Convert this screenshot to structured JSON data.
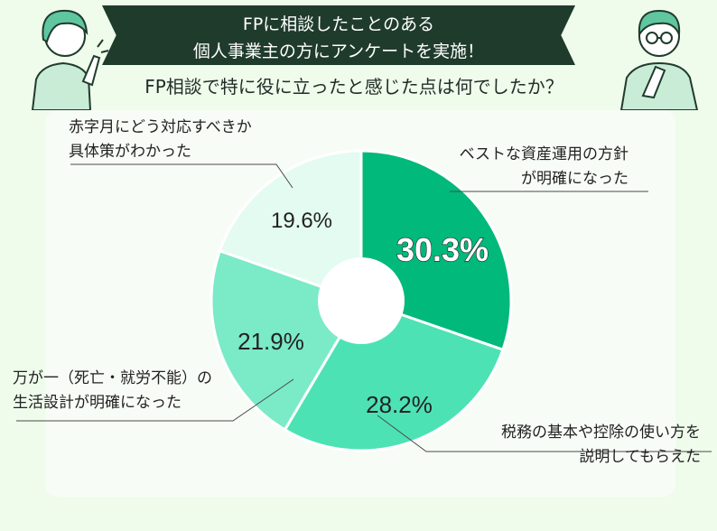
{
  "header": {
    "title_line1": "FPに相談したことのある",
    "title_line2": "個人事業主の方にアンケートを実施！",
    "question": "FP相談で特に役に立ったと感じた点は何でしたか？"
  },
  "chart_data": {
    "type": "pie",
    "title": "",
    "slices": [
      {
        "label": "ベストな資産運用の方針が明確になった",
        "value": 30.3,
        "value_label": "30.3%",
        "color": "#00b97a"
      },
      {
        "label": "税務の基本や控除の使い方を説明してもらえた",
        "value": 28.2,
        "value_label": "28.2%",
        "color": "#4de2b4"
      },
      {
        "label": "万が一（死亡・就労不能）の生活設計が明確になった",
        "value": 21.9,
        "value_label": "21.9%",
        "color": "#7aeac7"
      },
      {
        "label": "赤字月にどう対応すべきか具体策がわかった",
        "value": 19.6,
        "value_label": "19.6%",
        "color": "#e3fbf1"
      }
    ],
    "start_angle_deg": 0,
    "direction": "clockwise",
    "donut": true
  },
  "labels": {
    "s1_line1": "ベストな資産運用の方針",
    "s1_line2": "が明確になった",
    "s2_line1": "税務の基本や控除の使い方を",
    "s2_line2": "説明してもらえた",
    "s3_line1": "万が一（死亡・就労不能）の",
    "s3_line2": "生活設計が明確になった",
    "s4_line1": "赤字月にどう対応すべきか",
    "s4_line2": "具体策がわかった"
  },
  "colors": {
    "banner_bg": "#1f3b2c",
    "page_bg": "#effcec",
    "panel_bg": "#f8fcf6",
    "character_shirt": "#c9ecd6",
    "character_hair": "#5fc6a0"
  },
  "icons": [
    "woman-pointing-illustration",
    "man-thinking-illustration"
  ]
}
